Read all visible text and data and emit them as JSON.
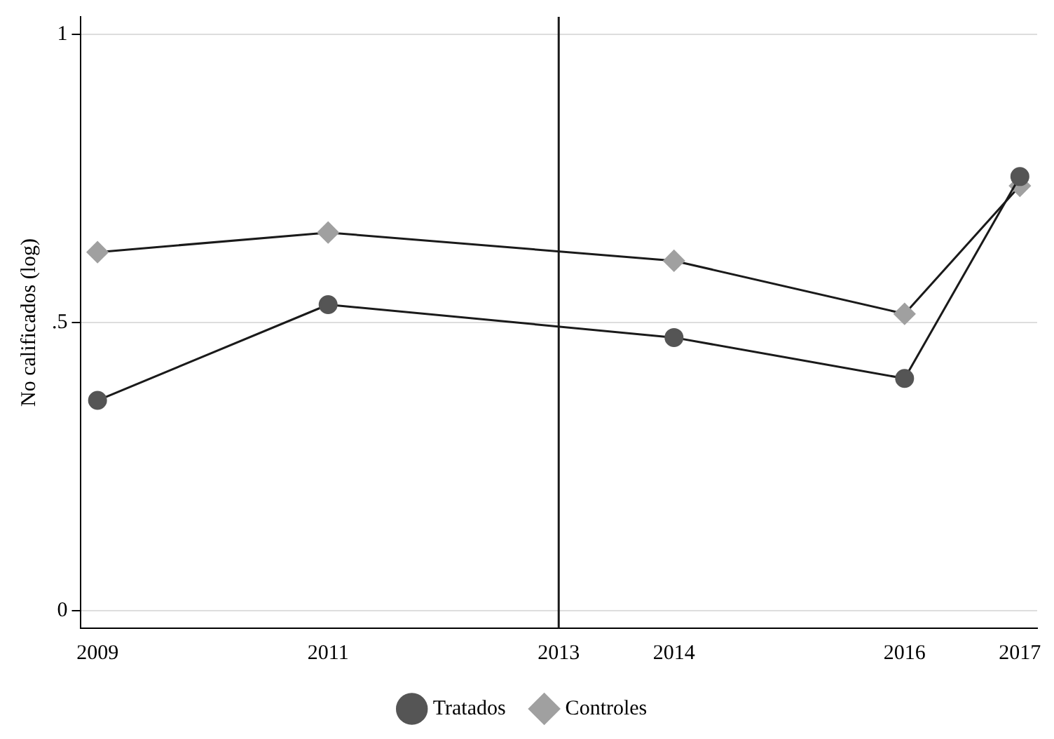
{
  "chart_data": {
    "type": "line",
    "ylabel": "No calificados (log)",
    "x": [
      2009,
      2011,
      2014,
      2016,
      2017
    ],
    "xlim": [
      2008.85,
      2017.15
    ],
    "xticks": [
      2009,
      2011,
      2013,
      2014,
      2016,
      2017
    ],
    "ylim": [
      -0.03,
      1.03
    ],
    "yticks": [
      {
        "value": 0,
        "label": "0"
      },
      {
        "value": 0.5,
        "label": ".5"
      },
      {
        "value": 1,
        "label": "1"
      }
    ],
    "grid": "y",
    "legend": "bottom",
    "ref_lines": [
      {
        "axis": "x",
        "value": 2013,
        "color": "#1a1a1a"
      }
    ],
    "series": [
      {
        "name": "Tratados",
        "color": "#555555",
        "marker": "circle",
        "values": [
          0.365,
          0.531,
          0.474,
          0.403,
          0.753
        ]
      },
      {
        "name": "Controles",
        "color": "#a0a0a0",
        "marker": "diamond",
        "values": [
          0.622,
          0.656,
          0.607,
          0.515,
          0.737
        ]
      }
    ]
  }
}
